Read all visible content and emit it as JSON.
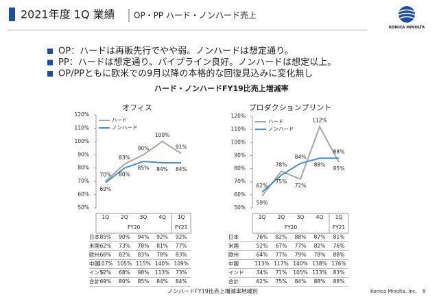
{
  "header": {
    "title": "2021年度 1Q 業績",
    "subtitle": "OP・PP ハード・ノンハード売上",
    "logo": "KONICA MINOLTA"
  },
  "bullets": [
    "OP：ハードは再販先行でやや弱。ノンハードは想定通り。",
    "PP：ハードは想定通り、パイプライン良好。ノンハードは想定以上。",
    "OP/PPともに欧米での9月以降の本格的な回復見込みに変化無し"
  ],
  "section_title": "ハード・ノンハードFY19比売上増減率",
  "chart_data": [
    {
      "type": "line",
      "title": "オフィス",
      "categories": [
        "1Q",
        "2Q",
        "3Q",
        "4Q",
        "1Q"
      ],
      "groups": [
        {
          "label": "FY20",
          "count": 4
        },
        {
          "label": "FY21",
          "count": 1
        }
      ],
      "series": [
        {
          "name": "ハード",
          "color": "#a6a6a6",
          "values": [
            70,
            83,
            90,
            100,
            91
          ],
          "value_labels": [
            "70%",
            "83%",
            "90%",
            "100%",
            "91%"
          ]
        },
        {
          "name": "ノンハード",
          "color": "#3f8fd2",
          "values": [
            69,
            80,
            85,
            84,
            84
          ],
          "value_labels": [
            "69%",
            "80%",
            "85%",
            "84%",
            "84%"
          ]
        }
      ],
      "ylim": [
        50,
        120
      ],
      "yticks": [
        {
          "value": 50,
          "label": "50%"
        },
        {
          "value": 60,
          "label": "60%"
        },
        {
          "value": 70,
          "label": "70%"
        },
        {
          "value": 80,
          "label": "80%"
        },
        {
          "value": 90,
          "label": "90%"
        },
        {
          "value": 100,
          "label": "100%"
        },
        {
          "value": 110,
          "label": "110%"
        },
        {
          "value": 120,
          "label": "120%"
        }
      ],
      "legend": "upper left"
    },
    {
      "type": "line",
      "title": "プロダクションプリント",
      "categories": [
        "1Q",
        "2Q",
        "3Q",
        "4Q",
        "1Q"
      ],
      "groups": [
        {
          "label": "FY20",
          "count": 4
        },
        {
          "label": "FY21",
          "count": 1
        }
      ],
      "series": [
        {
          "name": "ハード",
          "color": "#a6a6a6",
          "values": [
            59,
            78,
            72,
            112,
            85
          ],
          "value_labels": [
            "59%",
            "78%",
            "72%",
            "112%",
            "85%"
          ]
        },
        {
          "name": "ノンハード",
          "color": "#3f8fd2",
          "values": [
            62,
            75,
            84,
            88,
            88
          ],
          "value_labels": [
            "62%",
            "75%",
            "84%",
            "88%",
            "88%"
          ]
        }
      ],
      "ylim": [
        50,
        120
      ],
      "yticks": [
        {
          "value": 50,
          "label": "50%"
        },
        {
          "value": 60,
          "label": "60%"
        },
        {
          "value": 70,
          "label": "70%"
        },
        {
          "value": 80,
          "label": "80%"
        },
        {
          "value": 90,
          "label": "90%"
        },
        {
          "value": 100,
          "label": "100%"
        },
        {
          "value": 110,
          "label": "110%"
        },
        {
          "value": 120,
          "label": "120%"
        }
      ],
      "legend": "upper left"
    }
  ],
  "tables": [
    {
      "rows": [
        [
          "日本",
          "85%",
          "90%",
          "94%",
          "92%",
          "92%"
        ],
        [
          "米国",
          "62%",
          "73%",
          "78%",
          "81%",
          "77%"
        ],
        [
          "欧州",
          "66%",
          "82%",
          "83%",
          "78%",
          "83%"
        ],
        [
          "中国",
          "107%",
          "105%",
          "115%",
          "140%",
          "109%"
        ],
        [
          "インド",
          "52%",
          "68%",
          "98%",
          "113%",
          "73%"
        ],
        [
          "合計",
          "69%",
          "80%",
          "85%",
          "84%",
          "84%"
        ]
      ]
    },
    {
      "rows": [
        [
          "日本",
          "76%",
          "82%",
          "88%",
          "87%",
          "81%"
        ],
        [
          "米国",
          "52%",
          "67%",
          "77%",
          "82%",
          "76%"
        ],
        [
          "欧州",
          "64%",
          "77%",
          "79%",
          "78%",
          "88%"
        ],
        [
          "中国",
          "113%",
          "117%",
          "140%",
          "138%",
          "176%"
        ],
        [
          "インド",
          "34%",
          "71%",
          "105%",
          "113%",
          "83%"
        ],
        [
          "合計",
          "62%",
          "75%",
          "84%",
          "88%",
          "88%"
        ]
      ]
    }
  ],
  "table_caption": "ノンハードFY19比売上増減率地域別",
  "footer": {
    "company": "Konica Minolta, Inc.",
    "page": "8"
  }
}
